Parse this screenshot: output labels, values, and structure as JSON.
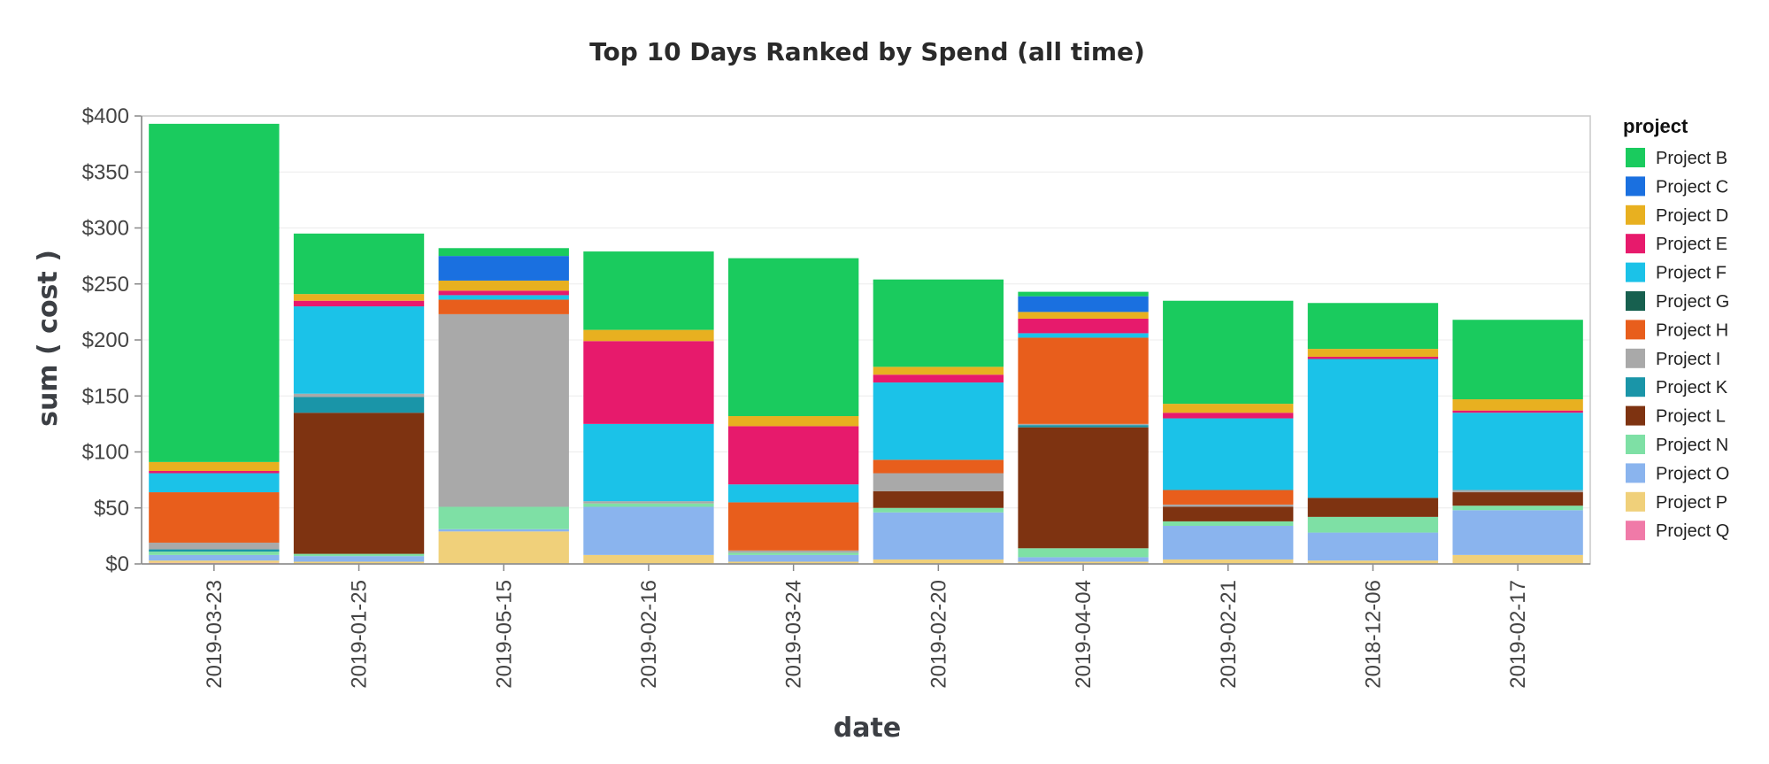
{
  "chart_data": {
    "type": "bar",
    "stacked": true,
    "title": "Top 10 Days Ranked by Spend (all time)",
    "xlabel": "date",
    "ylabel": "sum ( cost )",
    "ylim": [
      0,
      400
    ],
    "y_ticks": [
      0,
      50,
      100,
      150,
      200,
      250,
      300,
      350,
      400
    ],
    "y_tick_format": "$",
    "grid": true,
    "legend": {
      "title": "project",
      "placement": "right"
    },
    "categories": [
      "2019-03-23",
      "2019-01-25",
      "2019-05-15",
      "2019-02-16",
      "2019-03-24",
      "2019-02-20",
      "2019-04-04",
      "2019-02-21",
      "2018-12-06",
      "2019-02-17"
    ],
    "series": [
      {
        "name": "Project Q",
        "color": "#f07aa8",
        "values": [
          1,
          0,
          0,
          0,
          0,
          0,
          0,
          0,
          0,
          0
        ]
      },
      {
        "name": "Project P",
        "color": "#f0d07a",
        "values": [
          2,
          2,
          29,
          8,
          2,
          4,
          2,
          4,
          3,
          8
        ]
      },
      {
        "name": "Project O",
        "color": "#8ab4ee",
        "values": [
          5,
          5,
          2,
          43,
          6,
          42,
          4,
          30,
          25,
          40
        ]
      },
      {
        "name": "Project N",
        "color": "#7ee0a5",
        "values": [
          3,
          2,
          20,
          3,
          2,
          4,
          8,
          4,
          14,
          4
        ]
      },
      {
        "name": "Project L",
        "color": "#7e3311",
        "values": [
          0,
          126,
          0,
          0,
          0,
          15,
          108,
          13,
          17,
          12
        ]
      },
      {
        "name": "Project K",
        "color": "#1a95a8",
        "values": [
          2,
          14,
          0,
          0,
          0,
          0,
          2,
          0,
          0,
          0
        ]
      },
      {
        "name": "Project I",
        "color": "#a9a9a9",
        "values": [
          6,
          3,
          172,
          2,
          2,
          16,
          1,
          2,
          0,
          2
        ]
      },
      {
        "name": "Project H",
        "color": "#e85e1c",
        "values": [
          45,
          0,
          13,
          0,
          43,
          12,
          77,
          13,
          0,
          0
        ]
      },
      {
        "name": "Project G",
        "color": "#17604f",
        "values": [
          0,
          0,
          0,
          0,
          0,
          0,
          0,
          0,
          0,
          0
        ]
      },
      {
        "name": "Project F",
        "color": "#1bc2e8",
        "values": [
          17,
          78,
          4,
          69,
          16,
          69,
          4,
          64,
          124,
          69
        ]
      },
      {
        "name": "Project E",
        "color": "#e71a6c",
        "values": [
          2,
          5,
          4,
          74,
          52,
          7,
          13,
          5,
          2,
          2
        ]
      },
      {
        "name": "Project D",
        "color": "#e8b020",
        "values": [
          8,
          6,
          9,
          10,
          9,
          7,
          6,
          8,
          7,
          10
        ]
      },
      {
        "name": "Project C",
        "color": "#1a70e0",
        "values": [
          0,
          0,
          22,
          0,
          0,
          0,
          14,
          0,
          0,
          0
        ]
      },
      {
        "name": "Project B",
        "color": "#1acb5e",
        "values": [
          302,
          54,
          7,
          70,
          141,
          78,
          4,
          92,
          41,
          71
        ]
      }
    ],
    "legend_order": [
      "Project B",
      "Project C",
      "Project D",
      "Project E",
      "Project F",
      "Project G",
      "Project H",
      "Project I",
      "Project K",
      "Project L",
      "Project N",
      "Project O",
      "Project P",
      "Project Q"
    ]
  }
}
